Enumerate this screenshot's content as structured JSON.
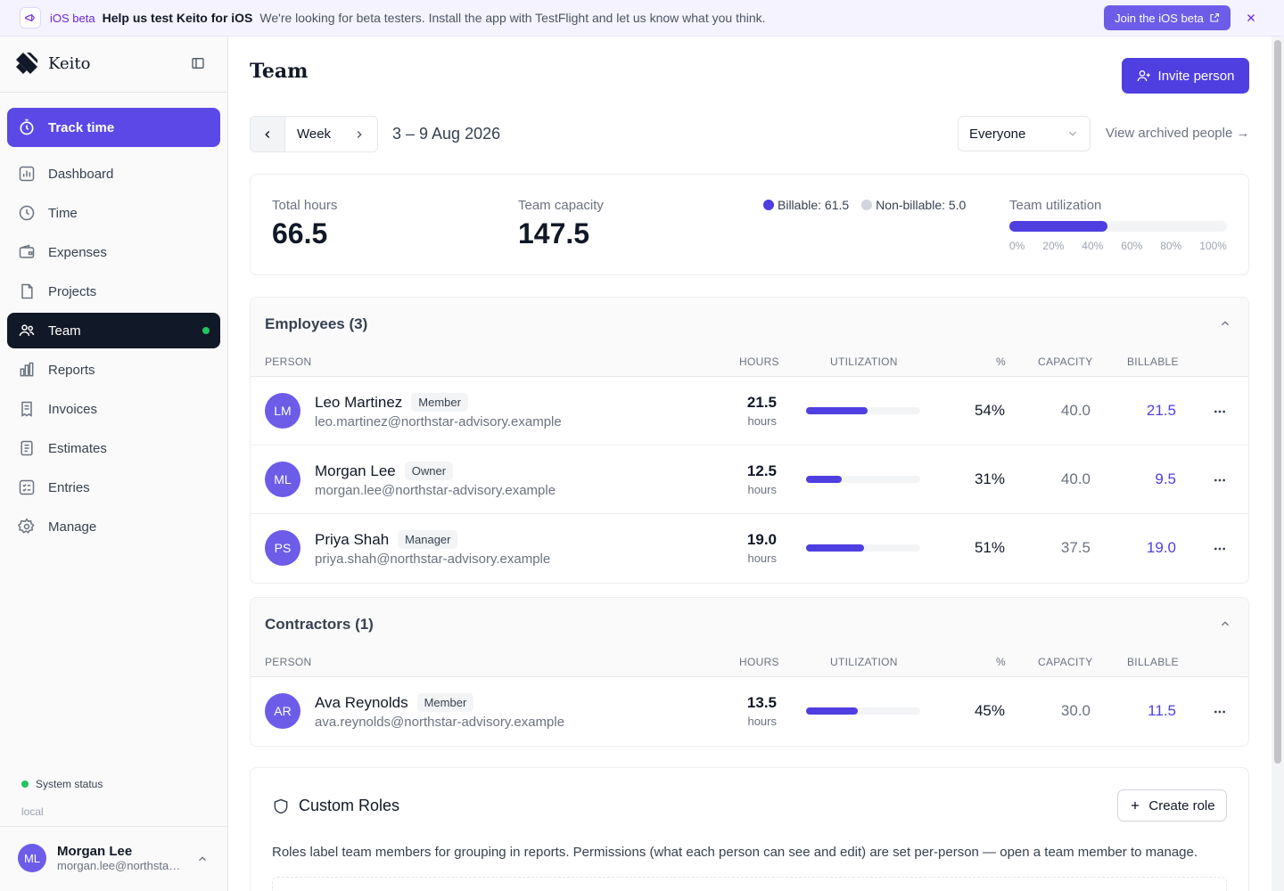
{
  "banner": {
    "tag": "iOS beta",
    "title": "Help us test Keito for iOS",
    "text": "We're looking for beta testers. Install the app with TestFlight and let us know what you think.",
    "join_label": "Join the iOS beta"
  },
  "sidebar": {
    "brand": "Keito",
    "track_label": "Track time",
    "items": [
      {
        "label": "Dashboard",
        "icon": "dashboard-icon"
      },
      {
        "label": "Time",
        "icon": "clock-icon"
      },
      {
        "label": "Expenses",
        "icon": "wallet-icon"
      },
      {
        "label": "Projects",
        "icon": "folder-icon"
      },
      {
        "label": "Team",
        "icon": "team-icon",
        "active": true
      },
      {
        "label": "Reports",
        "icon": "bar-chart-icon"
      },
      {
        "label": "Invoices",
        "icon": "invoice-icon"
      },
      {
        "label": "Estimates",
        "icon": "estimate-icon"
      },
      {
        "label": "Entries",
        "icon": "checklist-icon"
      },
      {
        "label": "Manage",
        "icon": "gear-icon"
      }
    ],
    "system_status": "System status",
    "environment": "local",
    "user": {
      "initials": "ML",
      "name": "Morgan Lee",
      "email": "morgan.lee@northstar-advisory.example"
    }
  },
  "header": {
    "title": "Team",
    "invite_label": "Invite person",
    "period_label": "Week",
    "date_range": "3 – 9 Aug 2026",
    "filter_value": "Everyone",
    "archived_link": "View archived people →"
  },
  "stats": {
    "total_hours_label": "Total hours",
    "total_hours": "66.5",
    "capacity_label": "Team capacity",
    "capacity": "147.5",
    "billable_legend": "Billable: 61.5",
    "nonbillable_legend": "Non-billable: 5.0",
    "utilization_label": "Team utilization",
    "utilization_fraction": 0.45,
    "ticks": [
      "0%",
      "20%",
      "40%",
      "60%",
      "80%",
      "100%"
    ],
    "colors": {
      "billable": "#4f3fe0",
      "nonbillable": "#d1d5db"
    }
  },
  "columns": {
    "person": "PERSON",
    "hours": "HOURS",
    "utilization": "UTILIZATION",
    "pct": "%",
    "capacity": "CAPACITY",
    "billable": "BILLABLE"
  },
  "employees": {
    "title": "Employees (3)",
    "rows": [
      {
        "initials": "LM",
        "name": "Leo Martinez",
        "role": "Member",
        "email": "leo.martinez@northstar-advisory.example",
        "hours": "21.5",
        "hours_unit": "hours",
        "util": 0.54,
        "pct": "54%",
        "capacity": "40.0",
        "billable": "21.5"
      },
      {
        "initials": "ML",
        "name": "Morgan Lee",
        "role": "Owner",
        "email": "morgan.lee@northstar-advisory.example",
        "hours": "12.5",
        "hours_unit": "hours",
        "util": 0.31,
        "pct": "31%",
        "capacity": "40.0",
        "billable": "9.5"
      },
      {
        "initials": "PS",
        "name": "Priya Shah",
        "role": "Manager",
        "email": "priya.shah@northstar-advisory.example",
        "hours": "19.0",
        "hours_unit": "hours",
        "util": 0.51,
        "pct": "51%",
        "capacity": "37.5",
        "billable": "19.0"
      }
    ]
  },
  "contractors": {
    "title": "Contractors (1)",
    "rows": [
      {
        "initials": "AR",
        "name": "Ava Reynolds",
        "role": "Member",
        "email": "ava.reynolds@northstar-advisory.example",
        "hours": "13.5",
        "hours_unit": "hours",
        "util": 0.45,
        "pct": "45%",
        "capacity": "30.0",
        "billable": "11.5"
      }
    ]
  },
  "roles": {
    "title": "Custom Roles",
    "create_label": "Create role",
    "description": "Roles label team members for grouping in reports. Permissions (what each person can see and edit) are set per-person — open a team member to manage."
  }
}
